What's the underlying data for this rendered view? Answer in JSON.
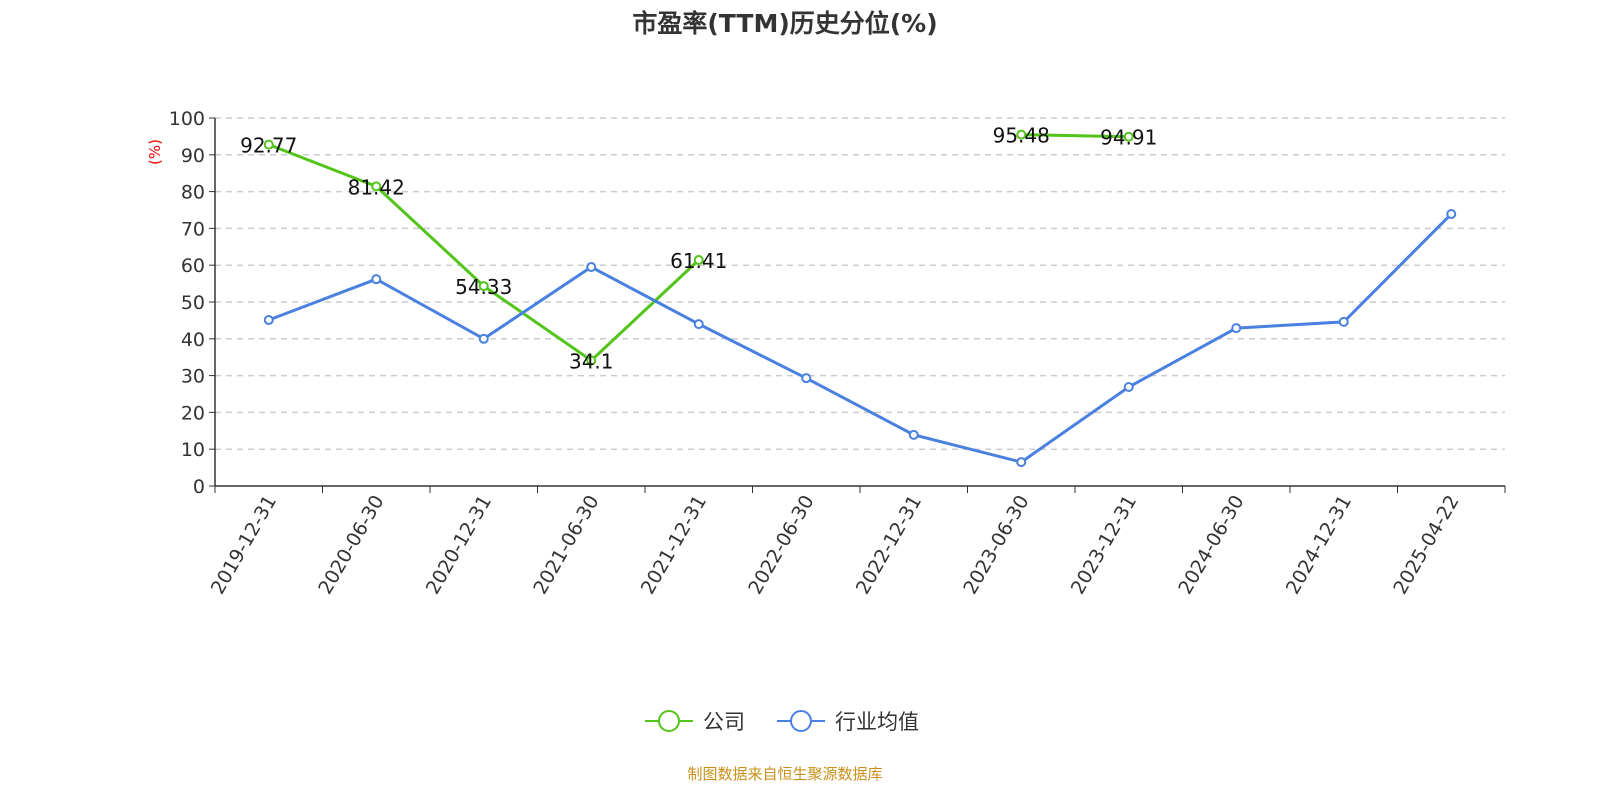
{
  "chart_data": {
    "type": "line",
    "title": "市盈率(TTM)历史分位(%)",
    "ylabel": "(%)",
    "xlabel": "",
    "ylim": [
      0,
      100
    ],
    "yticks": [
      0,
      10,
      20,
      30,
      40,
      50,
      60,
      70,
      80,
      90,
      100
    ],
    "grid": "horizontal dashed",
    "legend_position": "bottom",
    "categories": [
      "2019-12-31",
      "2020-06-30",
      "2020-12-31",
      "2021-06-30",
      "2021-12-31",
      "2022-06-30",
      "2022-12-31",
      "2023-06-30",
      "2023-12-31",
      "2024-06-30",
      "2024-12-31",
      "2025-04-22"
    ],
    "series": [
      {
        "name": "公司",
        "color": "#52c41a",
        "show_labels": true,
        "values": [
          92.77,
          81.42,
          54.33,
          34.1,
          61.41,
          null,
          null,
          95.48,
          94.91,
          null,
          null,
          null
        ]
      },
      {
        "name": "行业均值",
        "color": "#4a80e0",
        "show_labels": false,
        "values": [
          45.1,
          56.2,
          40.0,
          59.5,
          44.0,
          29.3,
          13.9,
          6.5,
          26.9,
          42.9,
          44.6,
          73.9
        ]
      }
    ]
  },
  "source": "制图数据来自恒生聚源数据库"
}
